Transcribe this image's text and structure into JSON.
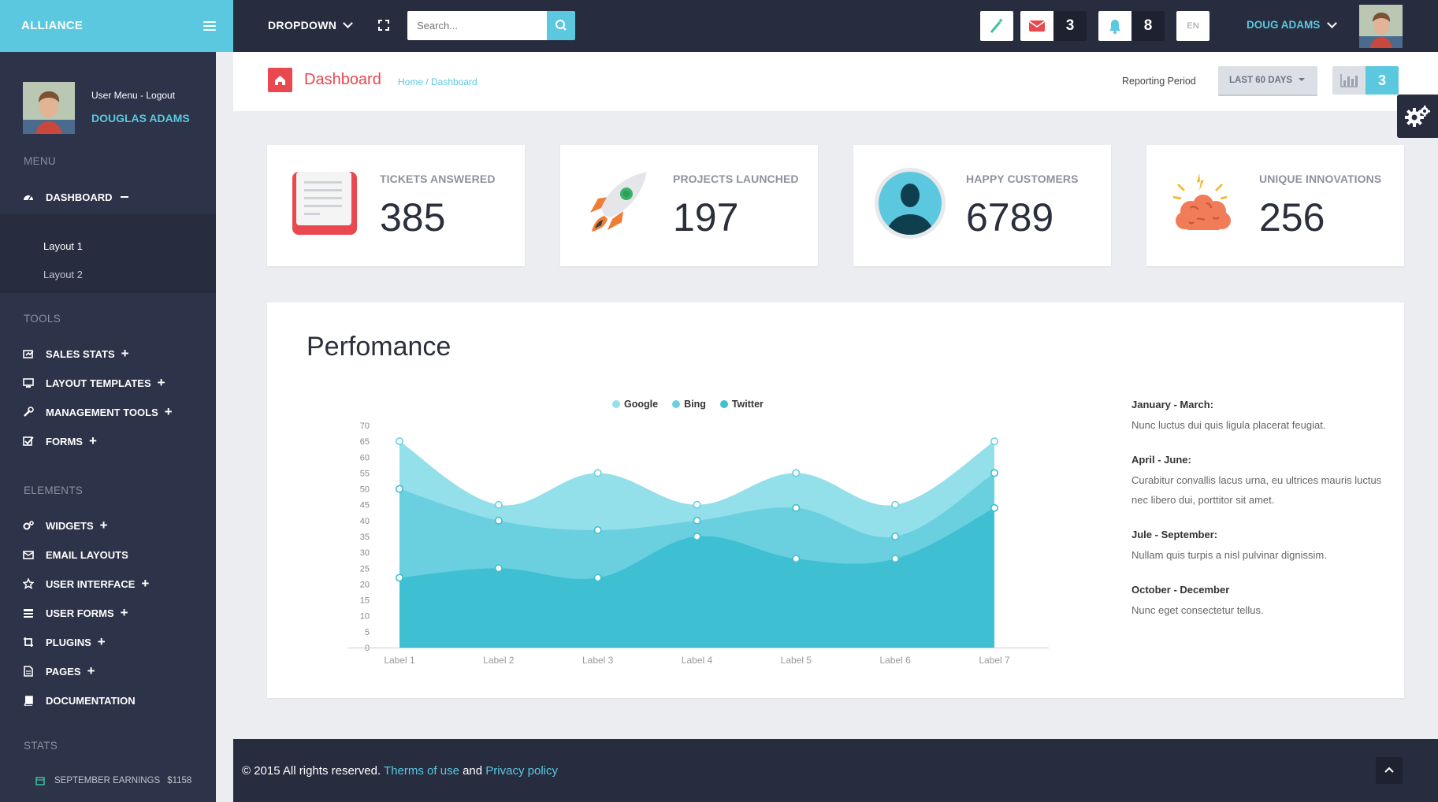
{
  "brand": {
    "title": "ALLIANCE"
  },
  "topbar": {
    "dropdown_label": "DROPDOWN",
    "search_placeholder": "Search...",
    "mail_count": "3",
    "notification_count": "8",
    "language": "EN",
    "user_name": "DOUG ADAMS"
  },
  "sidebar": {
    "user_menu": "User Menu - Logout",
    "user_name": "DOUGLAS ADAMS",
    "sections": {
      "menu": "MENU",
      "tools": "TOOLS",
      "elements": "ELEMENTS",
      "stats": "STATS"
    },
    "dashboard": "DASHBOARD",
    "submenu": [
      "Layout 1",
      "Layout 2"
    ],
    "tools": [
      "SALES STATS",
      "LAYOUT TEMPLATES",
      "MANAGEMENT TOOLS",
      "FORMS"
    ],
    "elements": [
      "WIDGETS",
      "EMAIL LAYOUTS",
      "USER INTERFACE",
      "USER FORMS",
      "PLUGINS",
      "PAGES",
      "DOCUMENTATION"
    ],
    "earnings_label": "SEPTEMBER EARNINGS",
    "earnings_value": "$1158"
  },
  "page_header": {
    "title": "Dashboard",
    "breadcrumb": "Home / Dashboard",
    "period_label": "Reporting Period",
    "period_value": "LAST 60 DAYS",
    "chart_count": "3"
  },
  "stats": [
    {
      "label": "TICKETS ANSWERED",
      "value": "385",
      "icon": "document-icon"
    },
    {
      "label": "PROJECTS LAUNCHED",
      "value": "197",
      "icon": "rocket-icon"
    },
    {
      "label": "HAPPY CUSTOMERS",
      "value": "6789",
      "icon": "user-silhouette-icon"
    },
    {
      "label": "UNIQUE INNOVATIONS",
      "value": "256",
      "icon": "brain-icon"
    }
  ],
  "performance": {
    "title": "Perfomance",
    "notes": [
      {
        "heading": "January - March:",
        "text": "Nunc luctus dui quis ligula placerat feugiat."
      },
      {
        "heading": "April - June:",
        "text": "Curabitur convallis lacus urna, eu ultrices mauris luctus nec libero dui, porttitor sit amet."
      },
      {
        "heading": "Jule - September:",
        "text": "Nullam quis turpis a nisl pulvinar dignissim."
      },
      {
        "heading": "October - December",
        "text": "Nunc eget consectetur tellus."
      }
    ]
  },
  "chart_data": {
    "type": "area",
    "categories": [
      "Label 1",
      "Label 2",
      "Label 3",
      "Label 4",
      "Label 5",
      "Label 6",
      "Label 7"
    ],
    "series": [
      {
        "name": "Google",
        "values": [
          65,
          45,
          55,
          45,
          55,
          45,
          65
        ],
        "color": "#93dfea"
      },
      {
        "name": "Bing",
        "values": [
          50,
          40,
          37,
          40,
          44,
          35,
          55
        ],
        "color": "#6ad0e0"
      },
      {
        "name": "Twitter",
        "values": [
          22,
          25,
          22,
          35,
          28,
          28,
          44
        ],
        "color": "#3fbfd2"
      }
    ],
    "ylim": [
      0,
      70
    ],
    "yticks": [
      0,
      5,
      10,
      15,
      20,
      25,
      30,
      35,
      40,
      45,
      50,
      55,
      60,
      65,
      70
    ],
    "legend_position": "top-center",
    "grid": false
  },
  "footer": {
    "copyright": "© 2015 All rights reserved.",
    "terms": "Therms of use",
    "and": "and",
    "privacy": "Privacy policy"
  },
  "colors": {
    "accent": "#5bc8df",
    "danger": "#e8484e",
    "dark": "#272c3f",
    "sidebar": "#2d3348"
  }
}
